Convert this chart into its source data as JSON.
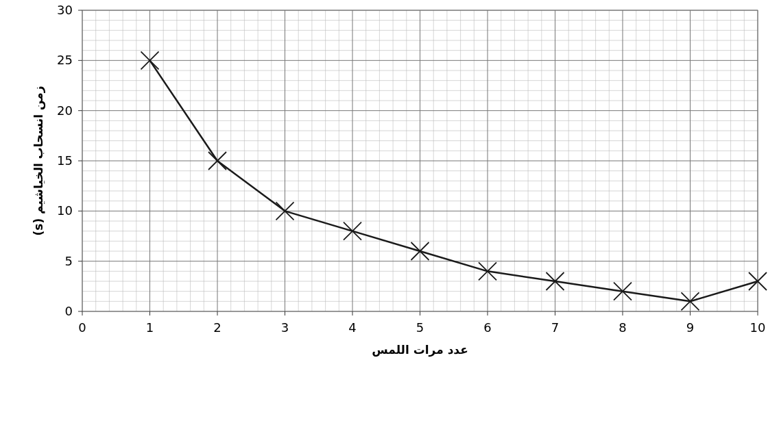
{
  "chart_data": {
    "type": "line",
    "xlabel": "عدد مرات اللمس",
    "ylabel": "زمن انسحاب الخياشيم (s)",
    "x": [
      1,
      2,
      3,
      4,
      5,
      6,
      7,
      8,
      9,
      10
    ],
    "series": [
      {
        "color": "#1a1a1a",
        "values": [
          25,
          15,
          10,
          8,
          6,
          4,
          3,
          2,
          1,
          3
        ]
      }
    ],
    "xlim": [
      0,
      10
    ],
    "xticks": [
      0,
      1,
      2,
      3,
      4,
      5,
      6,
      7,
      8,
      9,
      10
    ],
    "ylim": [
      0,
      30
    ],
    "yticks": [
      0,
      5,
      10,
      15,
      20,
      25,
      30
    ],
    "grid": true,
    "marker": "cross",
    "line_style": "solid"
  }
}
